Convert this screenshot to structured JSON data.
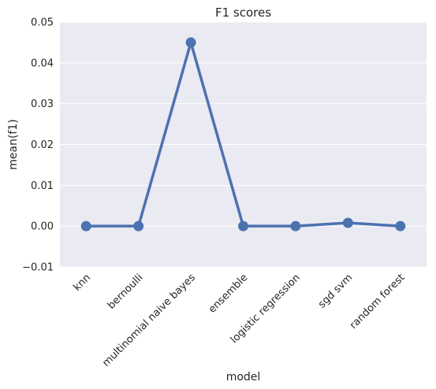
{
  "chart_data": {
    "type": "line",
    "title": "F1 scores",
    "xlabel": "model",
    "ylabel": "mean(f1)",
    "categories": [
      "knn",
      "bernoulli",
      "multinomial naive bayes",
      "ensemble",
      "logistic regression",
      "sgd svm",
      "random forest"
    ],
    "values": [
      0.0,
      0.0,
      0.045,
      0.0,
      0.0,
      0.0008,
      0.0
    ],
    "ylim": [
      -0.01,
      0.05
    ],
    "yticks": [
      -0.01,
      0.0,
      0.01,
      0.02,
      0.03,
      0.04,
      0.05
    ],
    "ytick_labels": [
      "−0.01",
      "0.00",
      "0.01",
      "0.02",
      "0.03",
      "0.04",
      "0.05"
    ],
    "grid": true,
    "colors": {
      "line": "#4c72b0",
      "plot_background": "#eaeaf2",
      "grid": "#ffffff"
    }
  }
}
